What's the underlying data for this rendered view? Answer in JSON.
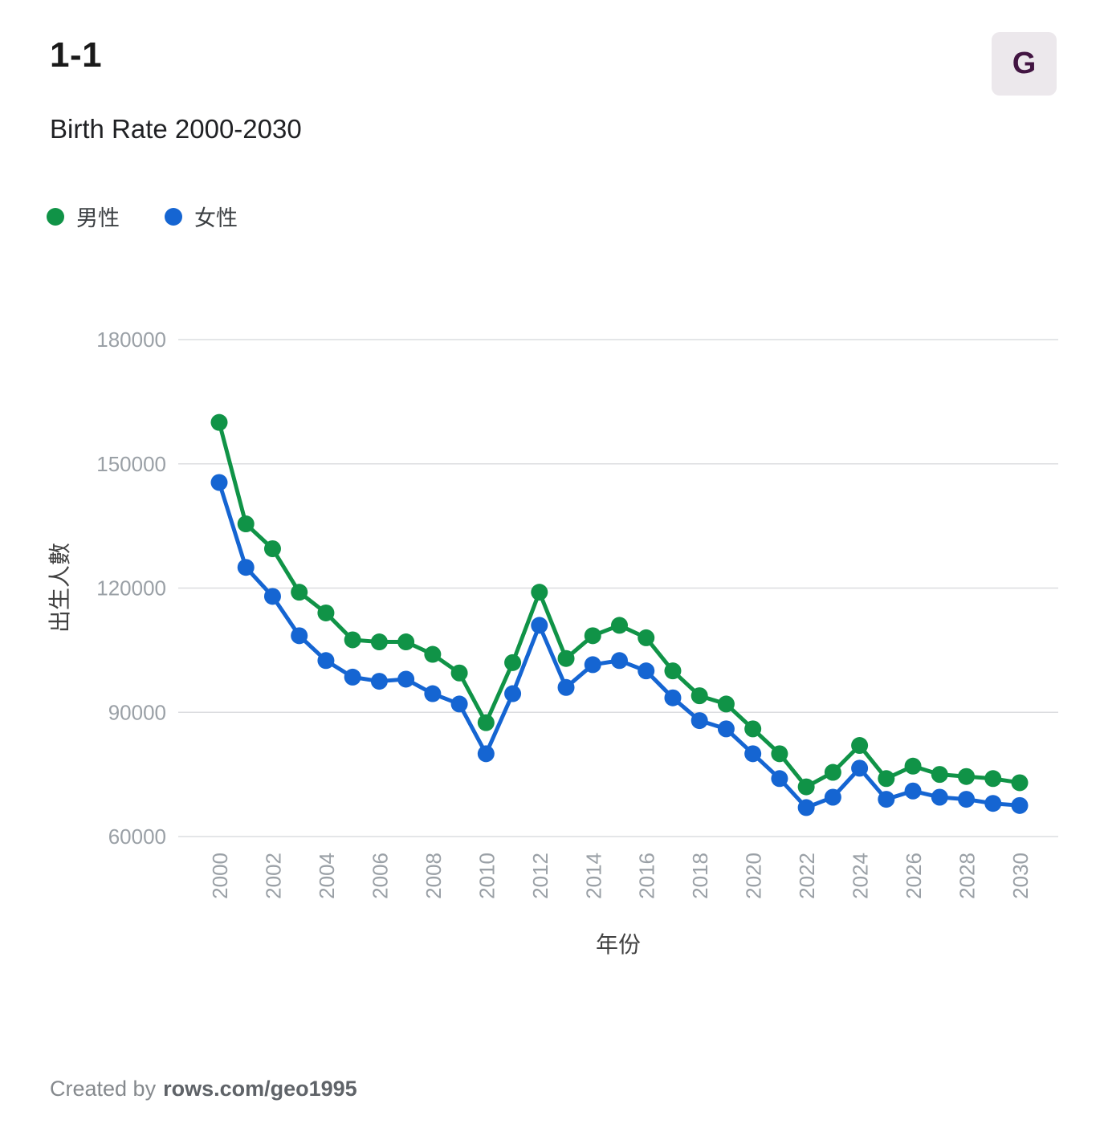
{
  "header": {
    "title": "1-1",
    "badge": "G"
  },
  "subtitle": "Birth Rate 2000-2030",
  "footer": {
    "prefix": "Created by",
    "author": "rows.com/geo1995"
  },
  "chart_data": {
    "type": "line",
    "x": [
      2000,
      2001,
      2002,
      2003,
      2004,
      2005,
      2006,
      2007,
      2008,
      2009,
      2010,
      2011,
      2012,
      2013,
      2014,
      2015,
      2016,
      2017,
      2018,
      2019,
      2020,
      2021,
      2022,
      2023,
      2024,
      2025,
      2026,
      2027,
      2028,
      2029,
      2030
    ],
    "series": [
      {
        "name": "男性",
        "color": "#109347",
        "values": [
          160000,
          135500,
          129500,
          119000,
          114000,
          107500,
          107000,
          107000,
          104000,
          99500,
          87500,
          102000,
          119000,
          103000,
          108500,
          111000,
          108000,
          100000,
          94000,
          92000,
          86000,
          80000,
          72000,
          75500,
          82000,
          74000,
          77000,
          75000,
          74500,
          74000,
          73000
        ]
      },
      {
        "name": "女性",
        "color": "#1565d2",
        "values": [
          145500,
          125000,
          118000,
          108500,
          102500,
          98500,
          97500,
          98000,
          94500,
          92000,
          80000,
          94500,
          111000,
          96000,
          101500,
          102500,
          100000,
          93500,
          88000,
          86000,
          80000,
          74000,
          67000,
          69500,
          76500,
          69000,
          71000,
          69500,
          69000,
          68000,
          67500
        ]
      }
    ],
    "xlabel": "年份",
    "ylabel": "出生人數",
    "ylim": [
      60000,
      180000
    ],
    "yticks": [
      60000,
      90000,
      120000,
      150000,
      180000
    ],
    "xtick_step": 2,
    "grid": true,
    "legend_position": "top-left",
    "marker": "circle",
    "styles": {
      "grid_color": "#dcdde0",
      "tick_label_color": "#9aa0a6",
      "axis_title_color": "#424242"
    }
  }
}
